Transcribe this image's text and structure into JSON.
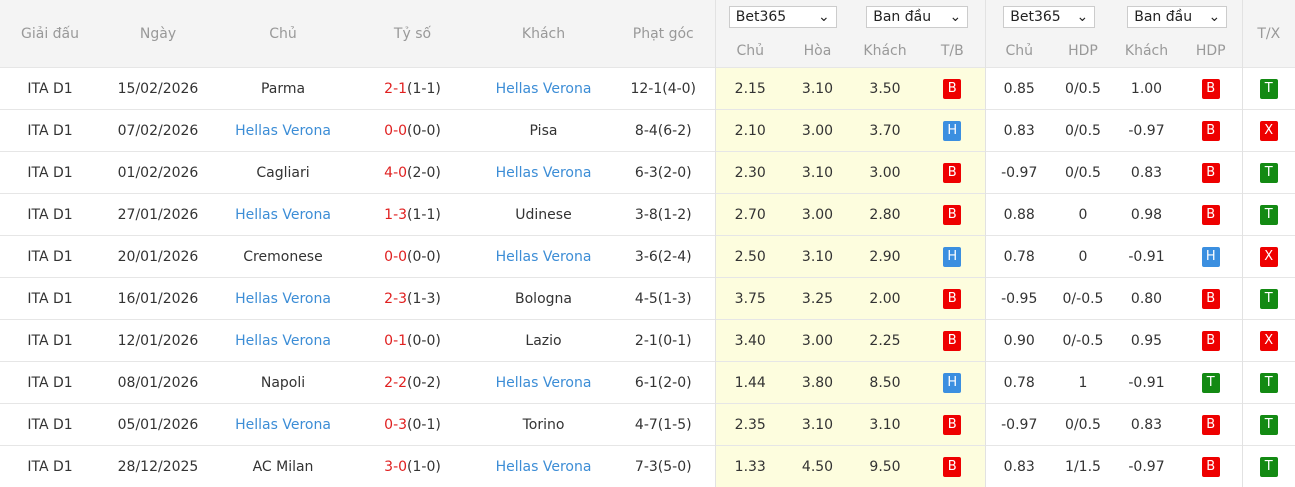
{
  "headers": {
    "league": "Giải đấu",
    "date": "Ngày",
    "home": "Chủ",
    "score": "Tỷ số",
    "away": "Khách",
    "corners": "Phạt góc",
    "ou": "T/X",
    "odds1x2": {
      "bookmaker": "Bet365",
      "type": "Ban đầu",
      "home": "Chủ",
      "draw": "Hòa",
      "away": "Khách",
      "result": "T/B"
    },
    "hdp": {
      "bookmaker": "Bet365",
      "type": "Ban đầu",
      "home": "Chủ",
      "line": "HDP",
      "away": "Khách",
      "result": "HDP"
    }
  },
  "colors": {
    "B": "#ee0000",
    "H": "#3b8fe0",
    "T": "#138a13",
    "X": "#ee0000"
  },
  "rows": [
    {
      "league": "ITA D1",
      "date": "15/02/2026",
      "home": "Parma",
      "ft": "2-1",
      "ht": "(1-1)",
      "away": "Hellas Verona",
      "team": "away",
      "corners": "12-1(4-0)",
      "o1": "2.15",
      "ox": "3.10",
      "o2": "3.50",
      "tb": "B",
      "h1": "0.85",
      "hl": "0/0.5",
      "h2": "1.00",
      "hr": "B",
      "tx": "T"
    },
    {
      "league": "ITA D1",
      "date": "07/02/2026",
      "home": "Hellas Verona",
      "ft": "0-0",
      "ht": "(0-0)",
      "away": "Pisa",
      "team": "home",
      "corners": "8-4(6-2)",
      "o1": "2.10",
      "ox": "3.00",
      "o2": "3.70",
      "tb": "H",
      "h1": "0.83",
      "hl": "0/0.5",
      "h2": "-0.97",
      "hr": "B",
      "tx": "X"
    },
    {
      "league": "ITA D1",
      "date": "01/02/2026",
      "home": "Cagliari",
      "ft": "4-0",
      "ht": "(2-0)",
      "away": "Hellas Verona",
      "team": "away",
      "corners": "6-3(2-0)",
      "o1": "2.30",
      "ox": "3.10",
      "o2": "3.00",
      "tb": "B",
      "h1": "-0.97",
      "hl": "0/0.5",
      "h2": "0.83",
      "hr": "B",
      "tx": "T"
    },
    {
      "league": "ITA D1",
      "date": "27/01/2026",
      "home": "Hellas Verona",
      "ft": "1-3",
      "ht": "(1-1)",
      "away": "Udinese",
      "team": "home",
      "corners": "3-8(1-2)",
      "o1": "2.70",
      "ox": "3.00",
      "o2": "2.80",
      "tb": "B",
      "h1": "0.88",
      "hl": "0",
      "h2": "0.98",
      "hr": "B",
      "tx": "T"
    },
    {
      "league": "ITA D1",
      "date": "20/01/2026",
      "home": "Cremonese",
      "ft": "0-0",
      "ht": "(0-0)",
      "away": "Hellas Verona",
      "team": "away",
      "corners": "3-6(2-4)",
      "o1": "2.50",
      "ox": "3.10",
      "o2": "2.90",
      "tb": "H",
      "h1": "0.78",
      "hl": "0",
      "h2": "-0.91",
      "hr": "H",
      "tx": "X"
    },
    {
      "league": "ITA D1",
      "date": "16/01/2026",
      "home": "Hellas Verona",
      "ft": "2-3",
      "ht": "(1-3)",
      "away": "Bologna",
      "team": "home",
      "corners": "4-5(1-3)",
      "o1": "3.75",
      "ox": "3.25",
      "o2": "2.00",
      "tb": "B",
      "h1": "-0.95",
      "hl": "0/-0.5",
      "h2": "0.80",
      "hr": "B",
      "tx": "T"
    },
    {
      "league": "ITA D1",
      "date": "12/01/2026",
      "home": "Hellas Verona",
      "ft": "0-1",
      "ht": "(0-0)",
      "away": "Lazio",
      "team": "home",
      "corners": "2-1(0-1)",
      "o1": "3.40",
      "ox": "3.00",
      "o2": "2.25",
      "tb": "B",
      "h1": "0.90",
      "hl": "0/-0.5",
      "h2": "0.95",
      "hr": "B",
      "tx": "X"
    },
    {
      "league": "ITA D1",
      "date": "08/01/2026",
      "home": "Napoli",
      "ft": "2-2",
      "ht": "(0-2)",
      "away": "Hellas Verona",
      "team": "away",
      "corners": "6-1(2-0)",
      "o1": "1.44",
      "ox": "3.80",
      "o2": "8.50",
      "tb": "H",
      "h1": "0.78",
      "hl": "1",
      "h2": "-0.91",
      "hr": "T",
      "tx": "T"
    },
    {
      "league": "ITA D1",
      "date": "05/01/2026",
      "home": "Hellas Verona",
      "ft": "0-3",
      "ht": "(0-1)",
      "away": "Torino",
      "team": "home",
      "corners": "4-7(1-5)",
      "o1": "2.35",
      "ox": "3.10",
      "o2": "3.10",
      "tb": "B",
      "h1": "-0.97",
      "hl": "0/0.5",
      "h2": "0.83",
      "hr": "B",
      "tx": "T"
    },
    {
      "league": "ITA D1",
      "date": "28/12/2025",
      "home": "AC Milan",
      "ft": "3-0",
      "ht": "(1-0)",
      "away": "Hellas Verona",
      "team": "away",
      "corners": "7-3(5-0)",
      "o1": "1.33",
      "ox": "4.50",
      "o2": "9.50",
      "tb": "B",
      "h1": "0.83",
      "hl": "1/1.5",
      "h2": "-0.97",
      "hr": "B",
      "tx": "T"
    }
  ]
}
